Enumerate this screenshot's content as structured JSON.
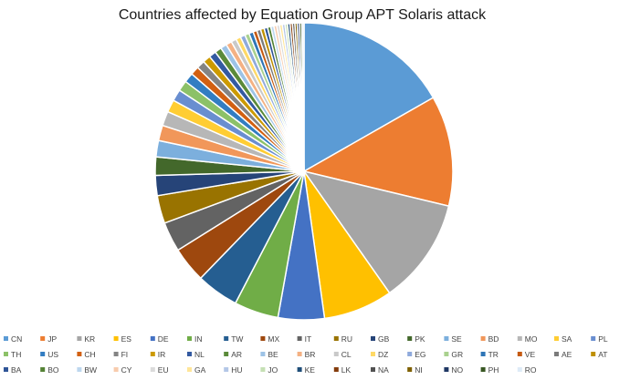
{
  "chart_data": {
    "type": "pie",
    "title": "Countries affected by Equation Group APT Solaris attack",
    "legend_position": "bottom",
    "slices": [
      {
        "label": "CN",
        "value": 16.0,
        "color": "#5b9bd5"
      },
      {
        "label": "JP",
        "value": 11.5,
        "color": "#ed7d31"
      },
      {
        "label": "KR",
        "value": 11.0,
        "color": "#a5a5a5"
      },
      {
        "label": "ES",
        "value": 7.2,
        "color": "#ffc000"
      },
      {
        "label": "DE",
        "value": 4.8,
        "color": "#4472c4"
      },
      {
        "label": "IN",
        "value": 4.6,
        "color": "#70ad47"
      },
      {
        "label": "TW",
        "value": 4.4,
        "color": "#255e91"
      },
      {
        "label": "MX",
        "value": 3.7,
        "color": "#9e480e"
      },
      {
        "label": "IT",
        "value": 3.1,
        "color": "#636363"
      },
      {
        "label": "RU",
        "value": 2.9,
        "color": "#997300"
      },
      {
        "label": "GB",
        "value": 2.1,
        "color": "#264478"
      },
      {
        "label": "PK",
        "value": 1.9,
        "color": "#43682b"
      },
      {
        "label": "SE",
        "value": 1.7,
        "color": "#7cafdd"
      },
      {
        "label": "BD",
        "value": 1.6,
        "color": "#f1975a"
      },
      {
        "label": "MO",
        "value": 1.5,
        "color": "#b7b7b7"
      },
      {
        "label": "SA",
        "value": 1.3,
        "color": "#ffcd33"
      },
      {
        "label": "PL",
        "value": 1.2,
        "color": "#698ed0"
      },
      {
        "label": "TH",
        "value": 1.1,
        "color": "#8cc168"
      },
      {
        "label": "US",
        "value": 1.0,
        "color": "#327dc2"
      },
      {
        "label": "CH",
        "value": 0.9,
        "color": "#d26012"
      },
      {
        "label": "FI",
        "value": 0.85,
        "color": "#848484"
      },
      {
        "label": "IR",
        "value": 0.8,
        "color": "#cc9a00"
      },
      {
        "label": "NL",
        "value": 0.75,
        "color": "#335aa1"
      },
      {
        "label": "AR",
        "value": 0.7,
        "color": "#5a8a39"
      },
      {
        "label": "BE",
        "value": 0.65,
        "color": "#9dc3e6"
      },
      {
        "label": "BR",
        "value": 0.6,
        "color": "#f4b183"
      },
      {
        "label": "CL",
        "value": 0.55,
        "color": "#c9c9c9"
      },
      {
        "label": "DZ",
        "value": 0.5,
        "color": "#ffd966"
      },
      {
        "label": "EG",
        "value": 0.5,
        "color": "#8faadc"
      },
      {
        "label": "GR",
        "value": 0.45,
        "color": "#a9d18e"
      },
      {
        "label": "TR",
        "value": 0.45,
        "color": "#2e75b6"
      },
      {
        "label": "VE",
        "value": 0.4,
        "color": "#c55a11"
      },
      {
        "label": "AE",
        "value": 0.4,
        "color": "#7b7b7b"
      },
      {
        "label": "AT",
        "value": 0.38,
        "color": "#bf9000"
      },
      {
        "label": "BA",
        "value": 0.36,
        "color": "#2f5597"
      },
      {
        "label": "BO",
        "value": 0.34,
        "color": "#548235"
      },
      {
        "label": "BW",
        "value": 0.32,
        "color": "#bdd7ee"
      },
      {
        "label": "CY",
        "value": 0.3,
        "color": "#f8cbad"
      },
      {
        "label": "EU",
        "value": 0.3,
        "color": "#dbdbdb"
      },
      {
        "label": "GA",
        "value": 0.28,
        "color": "#ffe699"
      },
      {
        "label": "HU",
        "value": 0.28,
        "color": "#b4c7e7"
      },
      {
        "label": "JO",
        "value": 0.26,
        "color": "#c5e0b4"
      },
      {
        "label": "KE",
        "value": 0.26,
        "color": "#1f4e79"
      },
      {
        "label": "LK",
        "value": 0.25,
        "color": "#843c0c"
      },
      {
        "label": "NA",
        "value": 0.25,
        "color": "#525252"
      },
      {
        "label": "NI",
        "value": 0.24,
        "color": "#7f6000"
      },
      {
        "label": "NO",
        "value": 0.24,
        "color": "#203864"
      },
      {
        "label": "PH",
        "value": 0.23,
        "color": "#385723"
      },
      {
        "label": "RO",
        "value": 0.23,
        "color": "#deebf7"
      }
    ]
  }
}
